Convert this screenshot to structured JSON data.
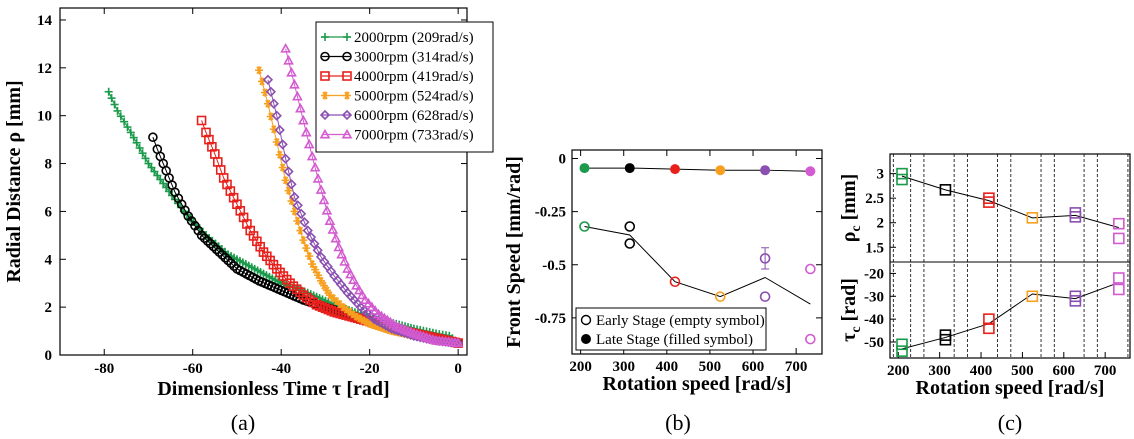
{
  "chart_data": [
    {
      "panel": "(a)",
      "type": "scatter",
      "xlabel": "Dimensionless Time τ [rad]",
      "ylabel": "Radial Distance ρ [mm]",
      "xlim": [
        -90,
        2
      ],
      "ylim": [
        0,
        14.5
      ],
      "xticks": [
        -80,
        -60,
        -40,
        -20,
        0
      ],
      "yticks": [
        0,
        2,
        4,
        6,
        8,
        10,
        12,
        14
      ],
      "legend_position": "top-right",
      "series": [
        {
          "name": "2000rpm (209rad/s)",
          "color": "#1a9a4a",
          "marker": "plus",
          "x": [
            -79,
            -77,
            -74,
            -70,
            -66,
            -62,
            -57,
            -52,
            -46,
            -40,
            -34,
            -28,
            -22,
            -16,
            -10,
            -5,
            -2,
            0
          ],
          "y": [
            11.0,
            10.2,
            9.3,
            8.0,
            7.0,
            6.0,
            5.0,
            4.2,
            3.6,
            3.0,
            2.6,
            2.1,
            1.7,
            1.4,
            1.1,
            0.9,
            0.8,
            0.5
          ]
        },
        {
          "name": "3000rpm (314rad/s)",
          "color": "#000000",
          "marker": "circle",
          "x": [
            -69,
            -68,
            -66,
            -64,
            -61,
            -58,
            -54,
            -50,
            -45,
            -40,
            -35,
            -30,
            -25,
            -20,
            -15,
            -10,
            -5,
            0
          ],
          "y": [
            9.1,
            8.6,
            7.7,
            6.8,
            5.8,
            5.0,
            4.3,
            3.6,
            3.1,
            2.7,
            2.3,
            2.0,
            1.7,
            1.4,
            1.1,
            0.9,
            0.7,
            0.5
          ]
        },
        {
          "name": "4000rpm (419rad/s)",
          "color": "#e8201c",
          "marker": "square",
          "x": [
            -58,
            -57,
            -55,
            -53,
            -50,
            -47,
            -44,
            -41,
            -38,
            -35,
            -32,
            -28,
            -24,
            -20,
            -15,
            -10,
            -5,
            0
          ],
          "y": [
            9.8,
            9.3,
            8.4,
            7.4,
            6.3,
            5.2,
            4.3,
            3.6,
            3.0,
            2.5,
            2.1,
            1.8,
            1.6,
            1.4,
            1.1,
            0.9,
            0.7,
            0.5
          ]
        },
        {
          "name": "5000rpm (524rad/s)",
          "color": "#f7a020",
          "marker": "star",
          "x": [
            -45,
            -43,
            -41,
            -39,
            -37,
            -35,
            -33,
            -31,
            -29,
            -26,
            -23,
            -20,
            -15,
            -10,
            -5,
            0
          ],
          "y": [
            11.9,
            10.5,
            8.9,
            7.3,
            6.0,
            4.8,
            3.8,
            3.1,
            2.5,
            2.0,
            1.6,
            1.3,
            1.0,
            0.8,
            0.6,
            0.5
          ]
        },
        {
          "name": "6000rpm (628rad/s)",
          "color": "#8a4fb0",
          "marker": "diamond",
          "x": [
            -43,
            -41,
            -39,
            -37,
            -34,
            -31,
            -28,
            -25,
            -22,
            -19,
            -15,
            -10,
            -5,
            0
          ],
          "y": [
            11.5,
            10.0,
            8.2,
            6.6,
            5.2,
            4.1,
            3.3,
            2.6,
            2.0,
            1.5,
            1.1,
            0.8,
            0.6,
            0.5
          ]
        },
        {
          "name": "7000rpm (733rad/s)",
          "color": "#d35ad0",
          "marker": "triangle",
          "x": [
            -39,
            -37,
            -35,
            -33,
            -31,
            -29,
            -27,
            -25,
            -23,
            -21,
            -18,
            -14,
            -10,
            -5,
            0
          ],
          "y": [
            12.8,
            11.3,
            9.8,
            8.3,
            6.9,
            5.6,
            4.5,
            3.6,
            2.9,
            2.3,
            1.7,
            1.2,
            0.9,
            0.6,
            0.5
          ]
        }
      ]
    },
    {
      "panel": "(b)",
      "type": "scatter",
      "xlabel": "Rotation speed [rad/s]",
      "ylabel": "Front Speed [mm/rad]",
      "xlim": [
        180,
        760
      ],
      "ylim": [
        -0.92,
        0.04
      ],
      "xticks": [
        200,
        300,
        400,
        500,
        600,
        700
      ],
      "yticks": [
        0,
        -0.25,
        -0.5,
        -0.75
      ],
      "ytick_labels": [
        "0",
        "-0.25",
        "-0.5",
        "-0.75"
      ],
      "legend_position": "bottom-left",
      "legend": [
        "Early Stage (empty symbol)",
        "Late Stage (filled symbol)"
      ],
      "point_colors": [
        "#1a9a4a",
        "#000000",
        "#e8201c",
        "#f7a020",
        "#8a4fb0",
        "#d35ad0"
      ],
      "late": {
        "x": [
          209,
          314,
          419,
          524,
          628,
          733
        ],
        "y": [
          -0.045,
          -0.045,
          -0.05,
          -0.055,
          -0.055,
          -0.06
        ]
      },
      "early_points": [
        {
          "x": 209,
          "y": -0.32,
          "c": 0
        },
        {
          "x": 314,
          "y": -0.32,
          "c": 1
        },
        {
          "x": 314,
          "y": -0.4,
          "c": 1
        },
        {
          "x": 419,
          "y": -0.58,
          "c": 2
        },
        {
          "x": 524,
          "y": -0.65,
          "c": 3
        },
        {
          "x": 628,
          "y": -0.47,
          "c": 4,
          "err": 0.05
        },
        {
          "x": 628,
          "y": -0.65,
          "c": 4
        },
        {
          "x": 733,
          "y": -0.52,
          "c": 5
        },
        {
          "x": 733,
          "y": -0.85,
          "c": 5
        }
      ],
      "early_line": {
        "x": [
          209,
          314,
          419,
          524,
          628,
          733
        ],
        "y": [
          -0.32,
          -0.36,
          -0.58,
          -0.65,
          -0.56,
          -0.685
        ]
      }
    },
    {
      "panel": "(c)",
      "type": "scatter",
      "xlabel": "Rotation speed [rad/s]",
      "xlim": [
        180,
        760
      ],
      "xticks": [
        200,
        300,
        400,
        500,
        600,
        700
      ],
      "vlines": [
        188,
        230,
        262,
        335,
        367,
        440,
        472,
        545,
        577,
        649,
        681,
        755
      ],
      "point_colors": [
        "#1a9a4a",
        "#000000",
        "#e8201c",
        "#f7a020",
        "#8a4fb0",
        "#d35ad0"
      ],
      "top": {
        "ylabel": "ρc [mm]",
        "ylim": [
          1.2,
          3.4
        ],
        "yticks": [
          1.5,
          2,
          2.5,
          3
        ],
        "ytick_labels": [
          "1.5",
          "2",
          "2.5",
          "3"
        ],
        "line": {
          "x": [
            209,
            314,
            419,
            524,
            628,
            733
          ],
          "y": [
            2.95,
            2.67,
            2.45,
            2.1,
            2.15,
            1.9
          ]
        },
        "points": [
          {
            "x": 209,
            "y": 3.0,
            "c": 0
          },
          {
            "x": 209,
            "y": 2.88,
            "c": 0
          },
          {
            "x": 314,
            "y": 2.67,
            "c": 1
          },
          {
            "x": 419,
            "y": 2.5,
            "c": 2
          },
          {
            "x": 419,
            "y": 2.42,
            "c": 2
          },
          {
            "x": 524,
            "y": 2.1,
            "c": 3
          },
          {
            "x": 628,
            "y": 2.2,
            "c": 4
          },
          {
            "x": 628,
            "y": 2.12,
            "c": 4
          },
          {
            "x": 733,
            "y": 1.98,
            "c": 5
          },
          {
            "x": 733,
            "y": 1.68,
            "c": 5
          }
        ]
      },
      "bottom": {
        "ylabel": "τc [rad]",
        "ylim": [
          -57,
          -15
        ],
        "yticks": [
          -50,
          -40,
          -30,
          -20
        ],
        "ytick_labels": [
          "-50",
          "-40",
          "-30",
          "-20"
        ],
        "line": {
          "x": [
            209,
            314,
            419,
            524,
            628,
            733
          ],
          "y": [
            -53,
            -48,
            -42,
            -29,
            -31,
            -24
          ]
        },
        "points": [
          {
            "x": 209,
            "y": -51,
            "c": 0
          },
          {
            "x": 209,
            "y": -54,
            "c": 0
          },
          {
            "x": 314,
            "y": -47,
            "c": 1
          },
          {
            "x": 314,
            "y": -49,
            "c": 1
          },
          {
            "x": 419,
            "y": -40,
            "c": 2
          },
          {
            "x": 419,
            "y": -44,
            "c": 2
          },
          {
            "x": 524,
            "y": -30,
            "c": 3
          },
          {
            "x": 628,
            "y": -30,
            "c": 4
          },
          {
            "x": 628,
            "y": -32,
            "c": 4
          },
          {
            "x": 733,
            "y": -22,
            "c": 5
          },
          {
            "x": 733,
            "y": -27,
            "c": 5
          }
        ]
      }
    }
  ],
  "captions": [
    "(a)",
    "(b)",
    "(c)"
  ]
}
